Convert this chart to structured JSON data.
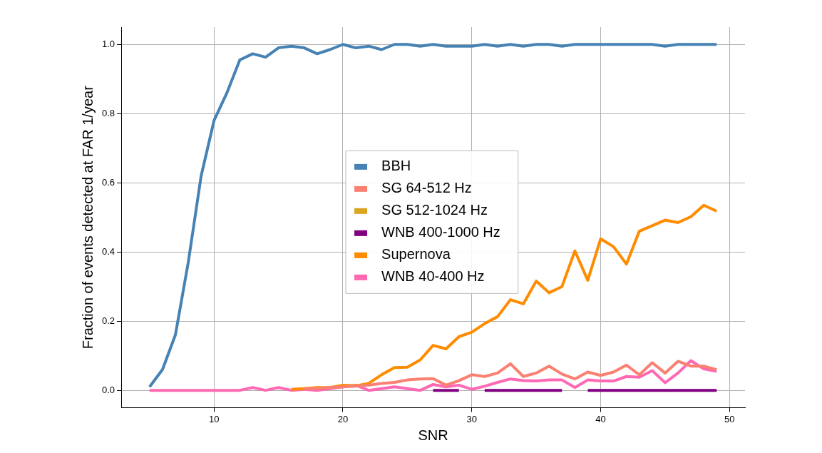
{
  "chart_data": {
    "type": "line",
    "xlabel": "SNR",
    "ylabel": "Fraction of events detected at FAR 1/year",
    "x": [
      5,
      6,
      7,
      8,
      9,
      10,
      11,
      12,
      13,
      14,
      15,
      16,
      17,
      18,
      19,
      20,
      21,
      22,
      23,
      24,
      25,
      26,
      27,
      28,
      29,
      30,
      31,
      32,
      33,
      34,
      35,
      36,
      37,
      38,
      39,
      40,
      41,
      42,
      43,
      44,
      45,
      46,
      47,
      48,
      49
    ],
    "series": [
      {
        "name": "BBH",
        "color": "#4682b4",
        "values": [
          0.01,
          0.06,
          0.16,
          0.37,
          0.62,
          0.78,
          0.86,
          0.955,
          0.973,
          0.963,
          0.99,
          0.995,
          0.99,
          0.973,
          0.985,
          1.0,
          0.99,
          0.995,
          0.985,
          1.0,
          1.0,
          0.995,
          1.0,
          0.995,
          0.995,
          0.995,
          1.0,
          0.995,
          1.0,
          0.995,
          1.0,
          1.0,
          0.995,
          1.0,
          1.0,
          1.0,
          1.0,
          1.0,
          1.0,
          1.0,
          0.995,
          1.0,
          1.0,
          1.0,
          1.0
        ]
      },
      {
        "name": "SG 64-512 Hz",
        "color": "#fa8072",
        "values": [
          null,
          null,
          null,
          null,
          null,
          null,
          null,
          null,
          null,
          null,
          null,
          null,
          0.005,
          0.005,
          0.008,
          0.01,
          0.012,
          0.015,
          0.02,
          0.023,
          0.03,
          0.033,
          0.034,
          0.015,
          0.028,
          0.045,
          0.04,
          0.05,
          0.077,
          0.04,
          0.05,
          0.07,
          0.047,
          0.033,
          0.053,
          0.043,
          0.053,
          0.073,
          0.045,
          0.08,
          0.05,
          0.084,
          0.07,
          0.07,
          0.06
        ]
      },
      {
        "name": "SG 512-1024 Hz",
        "color": "#daa520",
        "values": [
          null,
          null,
          null,
          null,
          null,
          null,
          null,
          null,
          null,
          null,
          null,
          null,
          null,
          null,
          null,
          null,
          null,
          null,
          null,
          null,
          null,
          null,
          null,
          null,
          null,
          null,
          null,
          null,
          null,
          null,
          null,
          null,
          null,
          null,
          null,
          null,
          null,
          null,
          null,
          null,
          null,
          null,
          null,
          null,
          null
        ]
      },
      {
        "name": "WNB 400-1000 Hz",
        "color": "#800080",
        "values": [
          null,
          null,
          null,
          null,
          null,
          null,
          null,
          null,
          null,
          null,
          null,
          null,
          null,
          null,
          null,
          null,
          null,
          null,
          null,
          null,
          null,
          null,
          0,
          0,
          0,
          null,
          0,
          0,
          0,
          0,
          0,
          0,
          0,
          null,
          0,
          0,
          0,
          0,
          0,
          0,
          0,
          0,
          0,
          0,
          0
        ]
      },
      {
        "name": "Supernova",
        "color": "#ff8c00",
        "values": [
          null,
          null,
          null,
          null,
          null,
          null,
          null,
          null,
          null,
          null,
          null,
          0.003,
          0.005,
          0.008,
          0.008,
          0.015,
          0.013,
          0.02,
          0.045,
          0.066,
          0.067,
          0.088,
          0.13,
          0.12,
          0.155,
          0.168,
          0.193,
          0.213,
          0.262,
          0.25,
          0.316,
          0.282,
          0.3,
          0.403,
          0.318,
          0.438,
          0.415,
          0.365,
          0.46,
          0.476,
          0.492,
          0.485,
          0.502,
          0.535,
          0.518
        ]
      },
      {
        "name": "WNB 40-400 Hz",
        "color": "#ff69b4",
        "values": [
          0,
          0,
          0,
          0,
          0,
          0,
          0,
          0,
          0.008,
          0,
          0.008,
          0,
          0.003,
          0,
          0.005,
          0.01,
          0.015,
          0,
          0.005,
          0.01,
          0.005,
          0,
          0.017,
          0.01,
          0.015,
          0.003,
          0.012,
          0.023,
          0.033,
          0.028,
          0.027,
          0.03,
          0.03,
          0.008,
          0.03,
          0.027,
          0.027,
          0.04,
          0.038,
          0.057,
          0.022,
          0.05,
          0.086,
          0.062,
          0.055
        ]
      }
    ],
    "xlim": [
      2.8,
      51.2
    ],
    "xticks": [
      10,
      20,
      30,
      40,
      50
    ],
    "ylim": [
      -0.05,
      1.05
    ],
    "yticks": [
      {
        "value": 0,
        "label": "0.0"
      },
      {
        "value": 0.2,
        "label": "0.2"
      },
      {
        "value": 0.4,
        "label": "0.4"
      },
      {
        "value": 0.6,
        "label": "0.6"
      },
      {
        "value": 0.8,
        "label": "0.8"
      },
      {
        "value": 1,
        "label": "1.0"
      }
    ],
    "grid": true,
    "legend": "center",
    "marker": "none",
    "line_style": "solid"
  }
}
